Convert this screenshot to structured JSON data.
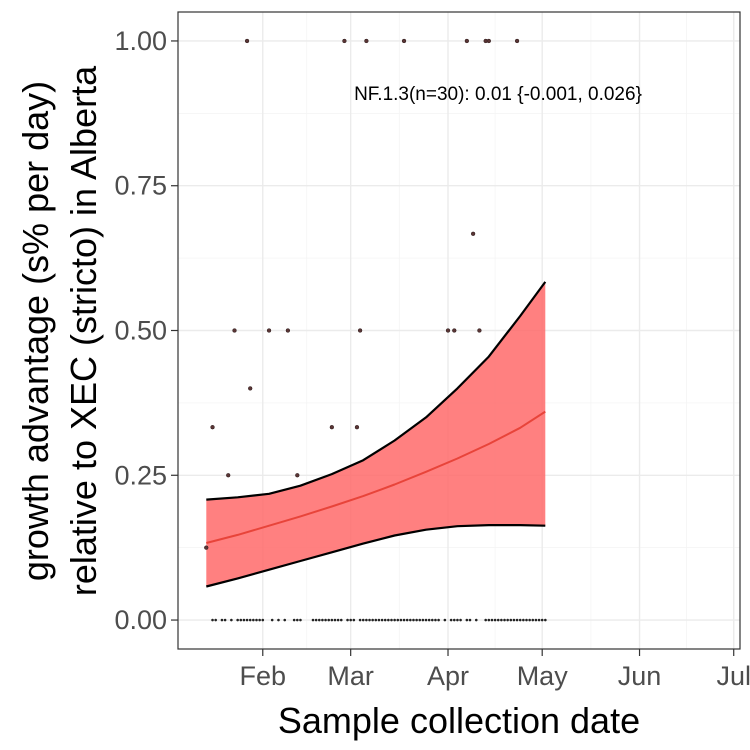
{
  "chart_data": {
    "type": "line",
    "xlabel": "Sample collection date",
    "ylabel_lines": [
      "growth advantage (s% per day)",
      "relative to XEC (stricto) in Alberta"
    ],
    "annotation": "NF.1.3(n=30): 0.01 {-0.001, 0.026}",
    "x_axis": {
      "start": "2025-01-05",
      "end": "2025-07-03",
      "ticks": [
        {
          "date": "2025-02-01",
          "label": "Feb"
        },
        {
          "date": "2025-03-01",
          "label": "Mar"
        },
        {
          "date": "2025-04-01",
          "label": "Apr"
        },
        {
          "date": "2025-05-01",
          "label": "May"
        },
        {
          "date": "2025-06-01",
          "label": "Jun"
        },
        {
          "date": "2025-07-01",
          "label": "Jul"
        }
      ]
    },
    "y_axis": {
      "range": [
        -0.05,
        1.05
      ],
      "ticks": [
        {
          "value": 0.0,
          "label": "0.00"
        },
        {
          "value": 0.25,
          "label": "0.25"
        },
        {
          "value": 0.5,
          "label": "0.50"
        },
        {
          "value": 0.75,
          "label": "0.75"
        },
        {
          "value": 1.0,
          "label": "1.00"
        }
      ]
    },
    "grid": true,
    "colors": {
      "fit": "#e8443a",
      "ribbon": "#ff6a6a",
      "bound": "#000000",
      "point": "#5a3535",
      "grid": "#ebebeb"
    },
    "fit": {
      "x": [
        "2025-01-14",
        "2025-01-24",
        "2025-02-03",
        "2025-02-13",
        "2025-02-23",
        "2025-03-05",
        "2025-03-15",
        "2025-03-25",
        "2025-04-04",
        "2025-04-14",
        "2025-04-24",
        "2025-05-02"
      ],
      "y": [
        0.133,
        0.147,
        0.163,
        0.179,
        0.196,
        0.214,
        0.234,
        0.256,
        0.279,
        0.304,
        0.332,
        0.36
      ]
    },
    "upper": {
      "x": [
        "2025-01-14",
        "2025-01-24",
        "2025-02-03",
        "2025-02-13",
        "2025-02-23",
        "2025-03-05",
        "2025-03-15",
        "2025-03-25",
        "2025-04-04",
        "2025-04-14",
        "2025-04-24",
        "2025-05-02"
      ],
      "y": [
        0.208,
        0.212,
        0.218,
        0.232,
        0.252,
        0.276,
        0.31,
        0.35,
        0.4,
        0.455,
        0.525,
        0.584
      ]
    },
    "lower": {
      "x": [
        "2025-01-14",
        "2025-01-24",
        "2025-02-03",
        "2025-02-13",
        "2025-02-23",
        "2025-03-05",
        "2025-03-15",
        "2025-03-25",
        "2025-04-04",
        "2025-04-14",
        "2025-04-24",
        "2025-05-02"
      ],
      "y": [
        0.058,
        0.072,
        0.087,
        0.102,
        0.117,
        0.132,
        0.146,
        0.156,
        0.162,
        0.164,
        0.164,
        0.163
      ]
    },
    "points": {
      "x": [
        "2025-01-14",
        "2025-01-16",
        "2025-01-21",
        "2025-01-23",
        "2025-01-27",
        "2025-01-28",
        "2025-02-03",
        "2025-02-09",
        "2025-02-12",
        "2025-02-23",
        "2025-02-27",
        "2025-03-03",
        "2025-03-04",
        "2025-03-06",
        "2025-03-18",
        "2025-04-01",
        "2025-04-03",
        "2025-04-07",
        "2025-04-09",
        "2025-04-11",
        "2025-04-13",
        "2025-04-14",
        "2025-04-23"
      ],
      "y": [
        0.125,
        0.333,
        0.25,
        0.5,
        1.0,
        0.4,
        0.5,
        0.5,
        0.25,
        0.333,
        1.0,
        0.333,
        0.5,
        1.0,
        1.0,
        0.5,
        0.5,
        1.0,
        0.667,
        0.5,
        1.0,
        1.0,
        1.0
      ]
    },
    "zero_points": {
      "x": [
        "2025-01-16",
        "2025-01-17",
        "2025-01-19",
        "2025-01-20",
        "2025-01-22",
        "2025-01-24",
        "2025-01-25",
        "2025-01-26",
        "2025-01-27",
        "2025-01-28",
        "2025-01-29",
        "2025-01-30",
        "2025-01-31",
        "2025-02-01",
        "2025-02-04",
        "2025-02-06",
        "2025-02-08",
        "2025-02-11",
        "2025-02-12",
        "2025-02-13",
        "2025-02-17",
        "2025-02-18",
        "2025-02-19",
        "2025-02-20",
        "2025-02-21",
        "2025-02-22",
        "2025-02-23",
        "2025-02-24",
        "2025-02-25",
        "2025-02-26",
        "2025-02-28",
        "2025-03-01",
        "2025-03-02",
        "2025-03-04",
        "2025-03-05",
        "2025-03-06",
        "2025-03-07",
        "2025-03-08",
        "2025-03-09",
        "2025-03-10",
        "2025-03-11",
        "2025-03-12",
        "2025-03-13",
        "2025-03-14",
        "2025-03-15",
        "2025-03-16",
        "2025-03-17",
        "2025-03-18",
        "2025-03-19",
        "2025-03-20",
        "2025-03-21",
        "2025-03-22",
        "2025-03-23",
        "2025-03-24",
        "2025-03-25",
        "2025-03-26",
        "2025-03-27",
        "2025-03-28",
        "2025-03-29",
        "2025-03-31",
        "2025-04-02",
        "2025-04-03",
        "2025-04-04",
        "2025-04-05",
        "2025-04-07",
        "2025-04-08",
        "2025-04-10",
        "2025-04-13",
        "2025-04-14",
        "2025-04-15",
        "2025-04-16",
        "2025-04-17",
        "2025-04-18",
        "2025-04-19",
        "2025-04-20",
        "2025-04-21",
        "2025-04-22",
        "2025-04-23",
        "2025-04-24",
        "2025-04-25",
        "2025-04-26",
        "2025-04-27",
        "2025-04-28",
        "2025-04-29",
        "2025-04-30",
        "2025-05-01",
        "2025-05-02"
      ],
      "y": 0.0
    }
  }
}
